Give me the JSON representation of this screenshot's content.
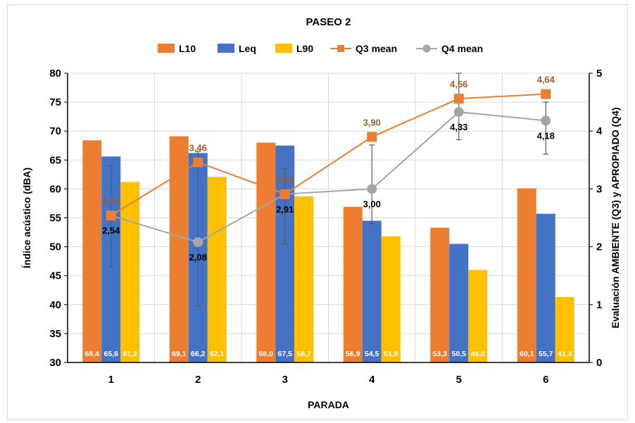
{
  "chart_data": {
    "type": "bar",
    "title": "PASEO 2",
    "xlabel": "PARADA",
    "ylabel": "Índice acústico (dBA)",
    "y2label": "Evaluación AMBIENTE (Q3) y APROPIADO (Q4)",
    "categories": [
      "1",
      "2",
      "3",
      "4",
      "5",
      "6"
    ],
    "ylim": [
      30,
      80
    ],
    "y_ticks": [
      "30",
      "35",
      "40",
      "45",
      "50",
      "55",
      "60",
      "65",
      "70",
      "75",
      "80"
    ],
    "y2lim": [
      0,
      5
    ],
    "y2_ticks": [
      "0",
      "1",
      "2",
      "3",
      "4",
      "5"
    ],
    "grid": true,
    "legend_position": "top",
    "series": [
      {
        "name": "L10",
        "kind": "bar",
        "axis": "left",
        "color": "#ed7d31",
        "values": [
          68.4,
          69.1,
          68.0,
          56.9,
          53.3,
          60.1
        ],
        "labels": [
          "68,4",
          "69,1",
          "68,0",
          "56,9",
          "53,3",
          "60,1"
        ]
      },
      {
        "name": "Leq",
        "kind": "bar",
        "axis": "left",
        "color": "#4472c4",
        "values": [
          65.6,
          66.2,
          67.5,
          54.5,
          50.5,
          55.7
        ],
        "labels": [
          "65,6",
          "66,2",
          "67,5",
          "54,5",
          "50,5",
          "55,7"
        ]
      },
      {
        "name": "L90",
        "kind": "bar",
        "axis": "left",
        "color": "#ffc000",
        "values": [
          61.2,
          62.1,
          58.7,
          51.8,
          46.0,
          41.3
        ],
        "labels": [
          "61,2",
          "62,1",
          "58,7",
          "51,8",
          "46,0",
          "41,3"
        ]
      },
      {
        "name": "Q3 mean",
        "kind": "line",
        "marker": "square",
        "axis": "right",
        "color": "#ed7d31",
        "values": [
          2.54,
          3.46,
          2.91,
          3.9,
          4.56,
          4.64
        ],
        "labels": [
          "2,54",
          "3,46",
          "2,91",
          "3,90",
          "4,56",
          "4,64"
        ]
      },
      {
        "name": "Q4 mean",
        "kind": "line",
        "marker": "circle",
        "axis": "right",
        "color": "#a5a5a5",
        "values": [
          2.54,
          2.08,
          2.91,
          3.0,
          4.33,
          4.18
        ],
        "labels": [
          "2,54",
          "2,08",
          "2,91",
          "3,00",
          "4,33",
          "4,18"
        ]
      }
    ],
    "error_bars": [
      {
        "category": "1",
        "low": 1.65,
        "high": 3.4
      },
      {
        "category": "2",
        "low": 0.98,
        "high": 3.65
      },
      {
        "category": "3",
        "low": 2.05,
        "high": 3.35
      },
      {
        "category": "4",
        "low": 2.4,
        "high": 3.76
      },
      {
        "category": "5",
        "low": 3.85,
        "high": 5.0
      },
      {
        "category": "6",
        "low": 3.6,
        "high": 4.5
      }
    ]
  }
}
